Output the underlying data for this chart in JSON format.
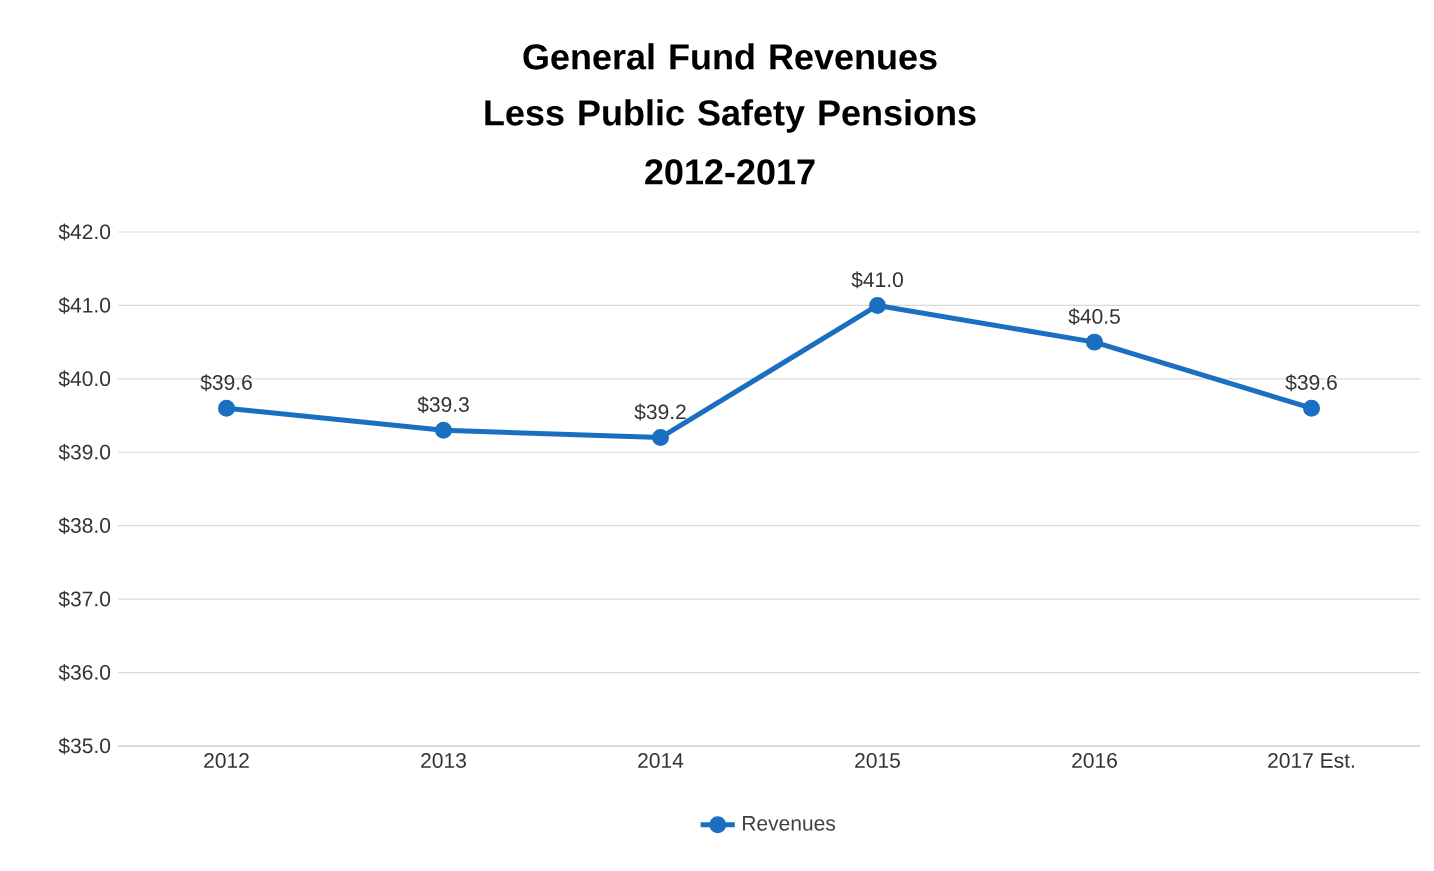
{
  "chart_data": {
    "type": "line",
    "title": "General Fund Revenues Less Public Safety Pensions",
    "subtitle": "2012-2017",
    "categories": [
      "2012",
      "2013",
      "2014",
      "2015",
      "2016",
      "2017 Est."
    ],
    "series": [
      {
        "name": "Revenues",
        "color": "#1a6fc0",
        "values": [
          39.6,
          39.3,
          39.2,
          41.0,
          40.5,
          39.6
        ],
        "value_labels": [
          "$39.6",
          "$39.3",
          "$39.2",
          "$41.0",
          "$40.5",
          "$39.6"
        ]
      }
    ],
    "ylim": [
      35,
      42
    ],
    "yticks": [
      {
        "value": 35,
        "label": "$35.0"
      },
      {
        "value": 36,
        "label": "$36.0"
      },
      {
        "value": 37,
        "label": "$37.0"
      },
      {
        "value": 38,
        "label": "$38.0"
      },
      {
        "value": 39,
        "label": "$39.0"
      },
      {
        "value": 40,
        "label": "$40.0"
      },
      {
        "value": 41,
        "label": "$41.0"
      },
      {
        "value": 42,
        "label": "$42.0"
      }
    ],
    "grid": "y",
    "legend": "bottom",
    "marker": "circle",
    "line_style": "solid"
  }
}
